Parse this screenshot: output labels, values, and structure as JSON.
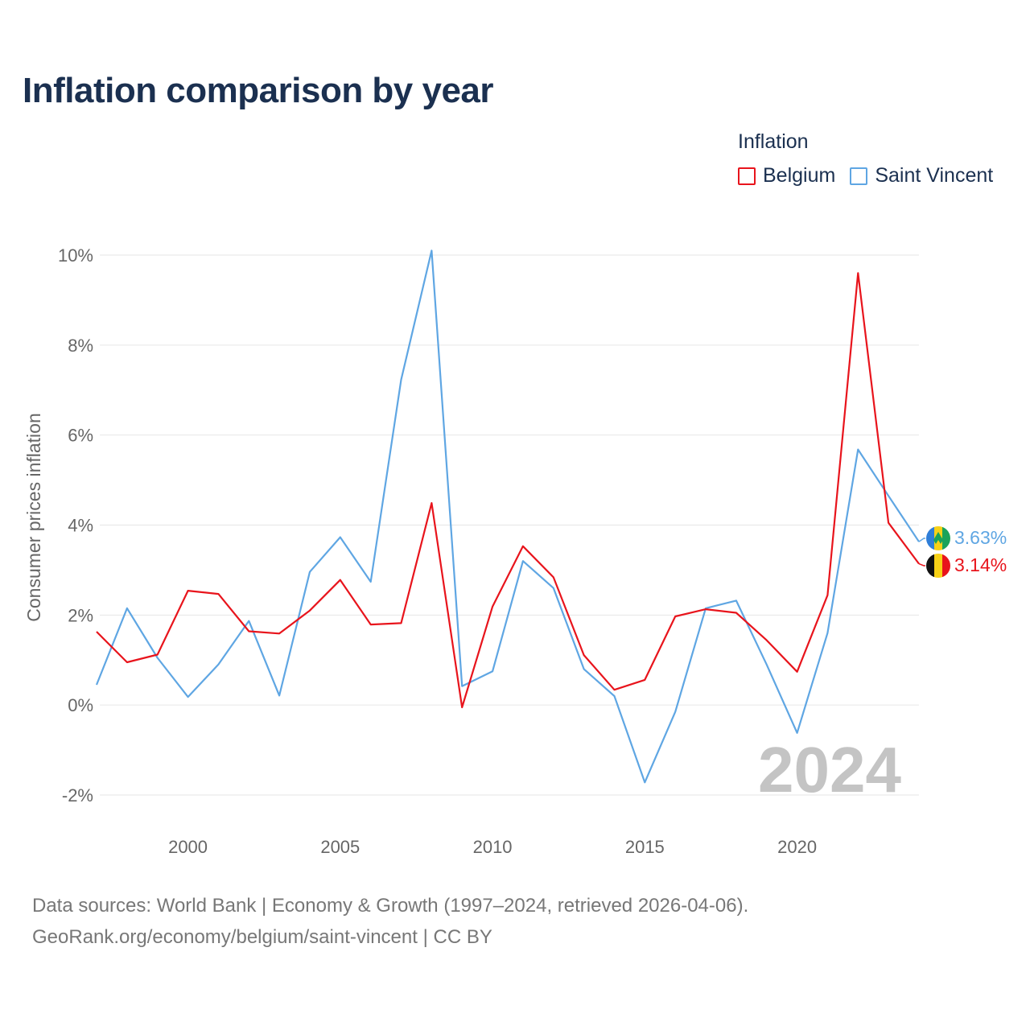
{
  "title": "Inflation comparison by year",
  "legend": {
    "title": "Inflation",
    "items": [
      {
        "label": "Belgium",
        "color": "#e8141c"
      },
      {
        "label": "Saint Vincent",
        "color": "#5fa6e3"
      }
    ]
  },
  "chart_data": {
    "type": "line",
    "title": "Inflation comparison by year",
    "xlabel": "",
    "ylabel": "Consumer prices inflation",
    "x": [
      1997,
      1998,
      1999,
      2000,
      2001,
      2002,
      2003,
      2004,
      2005,
      2006,
      2007,
      2008,
      2009,
      2010,
      2011,
      2012,
      2013,
      2014,
      2015,
      2016,
      2017,
      2018,
      2019,
      2020,
      2021,
      2022,
      2023,
      2024
    ],
    "xticks": [
      2000,
      2005,
      2010,
      2015,
      2020
    ],
    "xtick_labels": [
      "2000",
      "2005",
      "2010",
      "2015",
      "2020"
    ],
    "yticks": [
      -2,
      0,
      2,
      4,
      6,
      8,
      10
    ],
    "ytick_labels": [
      "-2%",
      "0%",
      "2%",
      "4%",
      "6%",
      "8%",
      "10%"
    ],
    "xlim": [
      1997,
      2024
    ],
    "ylim": [
      -2,
      10
    ],
    "grid": true,
    "series": [
      {
        "name": "Belgium",
        "color": "#e8141c",
        "values": [
          1.63,
          0.95,
          1.12,
          2.54,
          2.47,
          1.64,
          1.59,
          2.1,
          2.78,
          1.79,
          1.82,
          4.49,
          -0.05,
          2.19,
          3.53,
          2.84,
          1.11,
          0.34,
          0.56,
          1.97,
          2.13,
          2.05,
          1.44,
          0.74,
          2.44,
          9.6,
          4.05,
          3.14
        ],
        "end_label": "3.14%"
      },
      {
        "name": "Saint Vincent",
        "color": "#5fa6e3",
        "values": [
          0.45,
          2.15,
          1.05,
          0.18,
          0.9,
          1.87,
          0.21,
          2.96,
          3.73,
          2.74,
          7.23,
          10.1,
          0.42,
          0.75,
          3.2,
          2.6,
          0.8,
          0.2,
          -1.72,
          -0.15,
          2.15,
          2.32,
          0.9,
          -0.62,
          1.6,
          5.68,
          4.65,
          3.63
        ],
        "end_label": "3.63%"
      }
    ],
    "annotation": "2024"
  },
  "source": {
    "line1": "Data sources: World Bank | Economy & Growth (1997–2024, retrieved 2026-04-06).",
    "line2": "GeoRank.org/economy/belgium/saint-vincent | CC BY"
  }
}
